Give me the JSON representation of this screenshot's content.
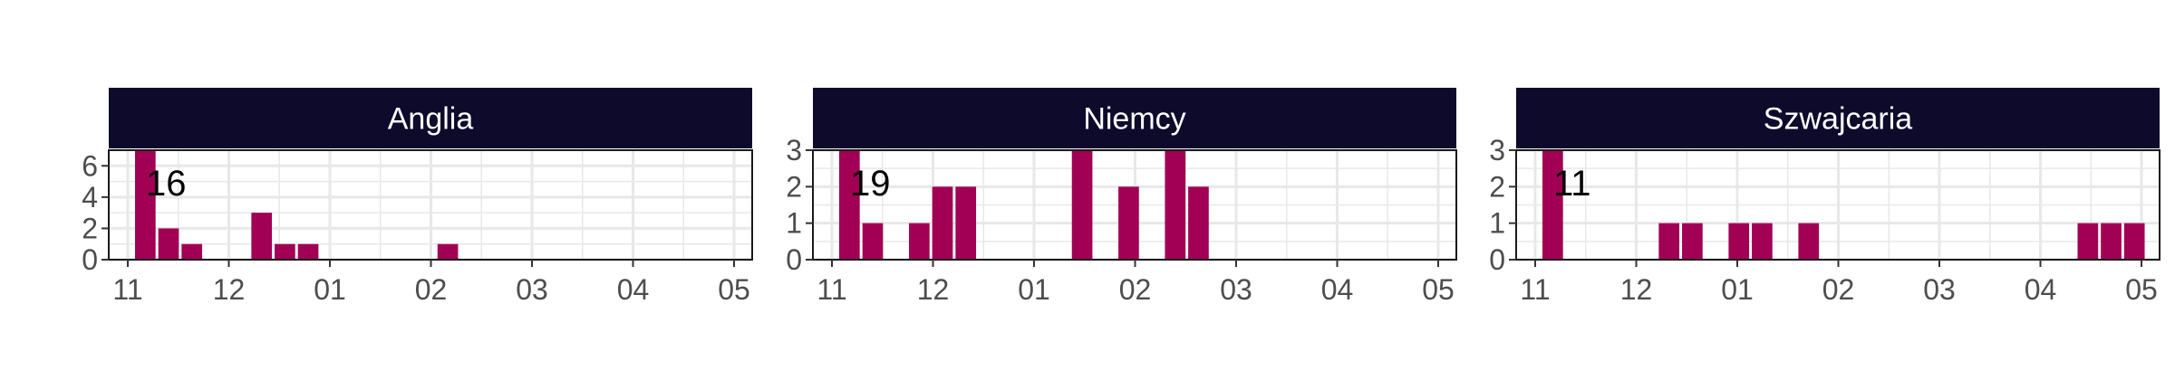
{
  "colors": {
    "bar": "#a10054",
    "strip": "#0d0a2b",
    "grid": "#e8e8e8",
    "frame": "#1a1a1a"
  },
  "chart_data": [
    {
      "type": "bar",
      "facet": "Anglia",
      "annotation": "16",
      "x_ticks": [
        "11",
        "12",
        "01",
        "02",
        "03",
        "04",
        "05"
      ],
      "y_ticks": [
        0,
        2,
        4,
        6
      ],
      "ylim": [
        0,
        7
      ],
      "xlabel": "",
      "ylabel": "",
      "grid": true,
      "bars": [
        {
          "week": 1,
          "value": 7
        },
        {
          "week": 2,
          "value": 2
        },
        {
          "week": 3,
          "value": 1
        },
        {
          "week": 6,
          "value": 3
        },
        {
          "week": 7,
          "value": 1
        },
        {
          "week": 8,
          "value": 1
        },
        {
          "week": 14,
          "value": 1
        }
      ]
    },
    {
      "type": "bar",
      "facet": "Niemcy",
      "annotation": "19",
      "x_ticks": [
        "11",
        "12",
        "01",
        "02",
        "03",
        "04",
        "05"
      ],
      "y_ticks": [
        0,
        1,
        2,
        3
      ],
      "ylim": [
        0,
        3
      ],
      "xlabel": "",
      "ylabel": "",
      "grid": true,
      "bars": [
        {
          "week": 1,
          "value": 3
        },
        {
          "week": 2,
          "value": 1
        },
        {
          "week": 4,
          "value": 1
        },
        {
          "week": 5,
          "value": 2
        },
        {
          "week": 6,
          "value": 2
        },
        {
          "week": 11,
          "value": 3
        },
        {
          "week": 13,
          "value": 2
        },
        {
          "week": 15,
          "value": 3
        },
        {
          "week": 16,
          "value": 2
        }
      ]
    },
    {
      "type": "bar",
      "facet": "Szwajcaria",
      "annotation": "11",
      "x_ticks": [
        "11",
        "12",
        "01",
        "02",
        "03",
        "04",
        "05"
      ],
      "y_ticks": [
        0,
        1,
        2,
        3
      ],
      "ylim": [
        0,
        3
      ],
      "xlabel": "",
      "ylabel": "",
      "grid": true,
      "bars": [
        {
          "week": 1,
          "value": 3
        },
        {
          "week": 6,
          "value": 1
        },
        {
          "week": 7,
          "value": 1
        },
        {
          "week": 9,
          "value": 1
        },
        {
          "week": 10,
          "value": 1
        },
        {
          "week": 12,
          "value": 1
        },
        {
          "week": 24,
          "value": 1
        },
        {
          "week": 25,
          "value": 1
        },
        {
          "week": 26,
          "value": 1
        }
      ]
    }
  ]
}
